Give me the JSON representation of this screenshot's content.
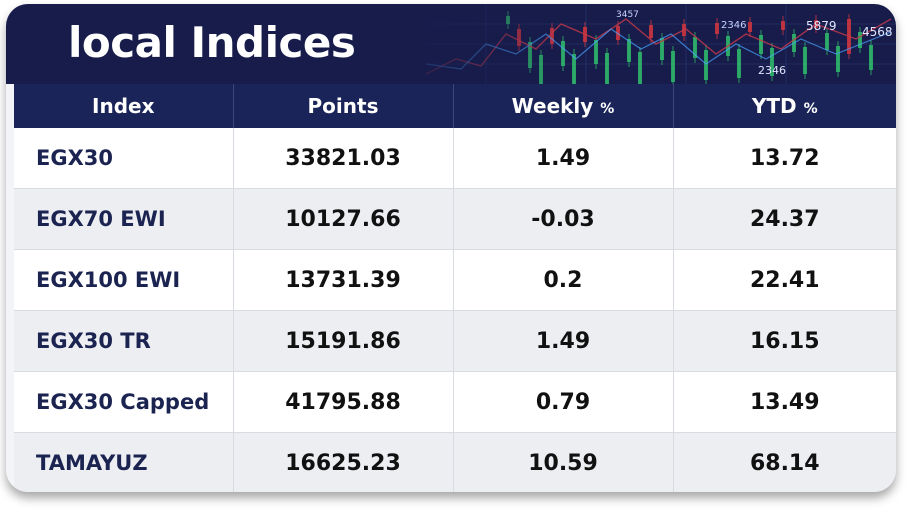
{
  "title": "local Indices",
  "columns": {
    "index": "Index",
    "points": "Points",
    "weekly": "Weekly",
    "weekly_unit": "%",
    "ytd": "YTD",
    "ytd_unit": "%"
  },
  "rows": [
    {
      "name": "EGX30",
      "points": "33821.03",
      "weekly": "1.49",
      "ytd": "13.72"
    },
    {
      "name": "EGX70 EWI",
      "points": "10127.66",
      "weekly": "-0.03",
      "ytd": "24.37"
    },
    {
      "name": "EGX100 EWI",
      "points": "13731.39",
      "weekly": "0.2",
      "ytd": "22.41"
    },
    {
      "name": "EGX30 TR",
      "points": "15191.86",
      "weekly": "1.49",
      "ytd": "16.15"
    },
    {
      "name": "EGX30 Capped",
      "points": "41795.88",
      "weekly": "0.79",
      "ytd": "13.49"
    },
    {
      "name": "TAMAYUZ",
      "points": "16625.23",
      "weekly": "10.59",
      "ytd": "68.14"
    }
  ],
  "banner_numbers": [
    "3457",
    "2346",
    "5879",
    "4568",
    "2346"
  ],
  "colors": {
    "banner_bg": "#171c4a",
    "header_bg": "#1b2458",
    "candle_up": "#2fb86a",
    "candle_down": "#d0353f"
  }
}
